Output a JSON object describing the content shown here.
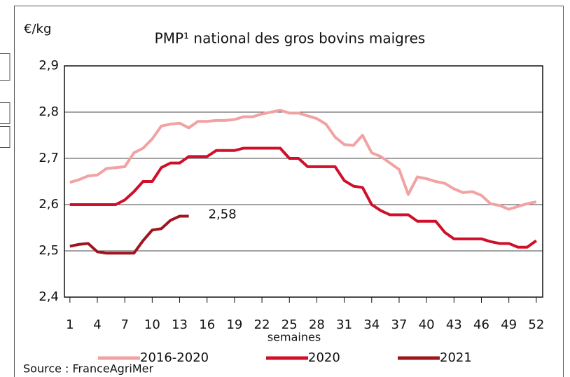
{
  "chart_data": {
    "type": "line",
    "title": "PMP¹ national des gros bovins maigres",
    "y_unit": "€/kg",
    "x_label": "semaines",
    "source": "Source : FranceAgriMer",
    "x": [
      1,
      2,
      3,
      4,
      5,
      6,
      7,
      8,
      9,
      10,
      11,
      12,
      13,
      14,
      15,
      16,
      17,
      18,
      19,
      20,
      21,
      22,
      23,
      24,
      25,
      26,
      27,
      28,
      29,
      30,
      31,
      32,
      33,
      34,
      35,
      36,
      37,
      38,
      39,
      40,
      41,
      42,
      43,
      44,
      45,
      46,
      47,
      48,
      49,
      50,
      51,
      52
    ],
    "series": [
      {
        "name": "2016-2020",
        "color": "#f2a2a2",
        "values": [
          2.648,
          2.654,
          2.662,
          2.664,
          2.678,
          2.68,
          2.682,
          2.712,
          2.722,
          2.742,
          2.77,
          2.774,
          2.776,
          2.766,
          2.78,
          2.78,
          2.782,
          2.782,
          2.784,
          2.79,
          2.79,
          2.796,
          2.8,
          2.804,
          2.798,
          2.798,
          2.792,
          2.786,
          2.774,
          2.746,
          2.73,
          2.728,
          2.75,
          2.712,
          2.704,
          2.69,
          2.676,
          2.622,
          2.66,
          2.656,
          2.65,
          2.646,
          2.634,
          2.626,
          2.628,
          2.62,
          2.602,
          2.598,
          2.59,
          2.596,
          2.602,
          2.606
        ]
      },
      {
        "name": "2020",
        "color": "#d0102a",
        "values": [
          2.6,
          2.6,
          2.6,
          2.6,
          2.6,
          2.6,
          2.61,
          2.628,
          2.65,
          2.65,
          2.68,
          2.69,
          2.69,
          2.704,
          2.704,
          2.704,
          2.717,
          2.717,
          2.717,
          2.722,
          2.722,
          2.722,
          2.722,
          2.722,
          2.7,
          2.7,
          2.682,
          2.682,
          2.682,
          2.682,
          2.652,
          2.64,
          2.637,
          2.6,
          2.587,
          2.578,
          2.578,
          2.578,
          2.564,
          2.564,
          2.564,
          2.54,
          2.526,
          2.526,
          2.526,
          2.526,
          2.52,
          2.516,
          2.516,
          2.508,
          2.508,
          2.522
        ]
      },
      {
        "name": "2021",
        "color": "#a0141e",
        "values": [
          2.51,
          2.514,
          2.516,
          2.498,
          2.495,
          2.495,
          2.495,
          2.495,
          2.522,
          2.545,
          2.548,
          2.566,
          2.575,
          2.575,
          null,
          null,
          null,
          null,
          null,
          null,
          null,
          null,
          null,
          null,
          null,
          null,
          null,
          null,
          null,
          null,
          null,
          null,
          null,
          null,
          null,
          null,
          null,
          null,
          null,
          null,
          null,
          null,
          null,
          null,
          null,
          null,
          null,
          null,
          null,
          null,
          null,
          null
        ]
      }
    ],
    "annotations": [
      {
        "text": "2,58",
        "color": "#c0663a"
      }
    ],
    "xlim": [
      0.4,
      52.7
    ],
    "xticks": [
      1,
      4,
      7,
      10,
      13,
      16,
      19,
      22,
      25,
      28,
      31,
      34,
      37,
      40,
      43,
      46,
      49,
      52
    ],
    "ylim": [
      2.4,
      2.9
    ],
    "yticks": [
      {
        "value": 2.4,
        "label": "2,4"
      },
      {
        "value": 2.5,
        "label": "2,5"
      },
      {
        "value": 2.6,
        "label": "2,6"
      },
      {
        "value": 2.7,
        "label": "2,7"
      },
      {
        "value": 2.8,
        "label": "2,8"
      },
      {
        "value": 2.9,
        "label": "2,9"
      }
    ],
    "grid": true
  }
}
